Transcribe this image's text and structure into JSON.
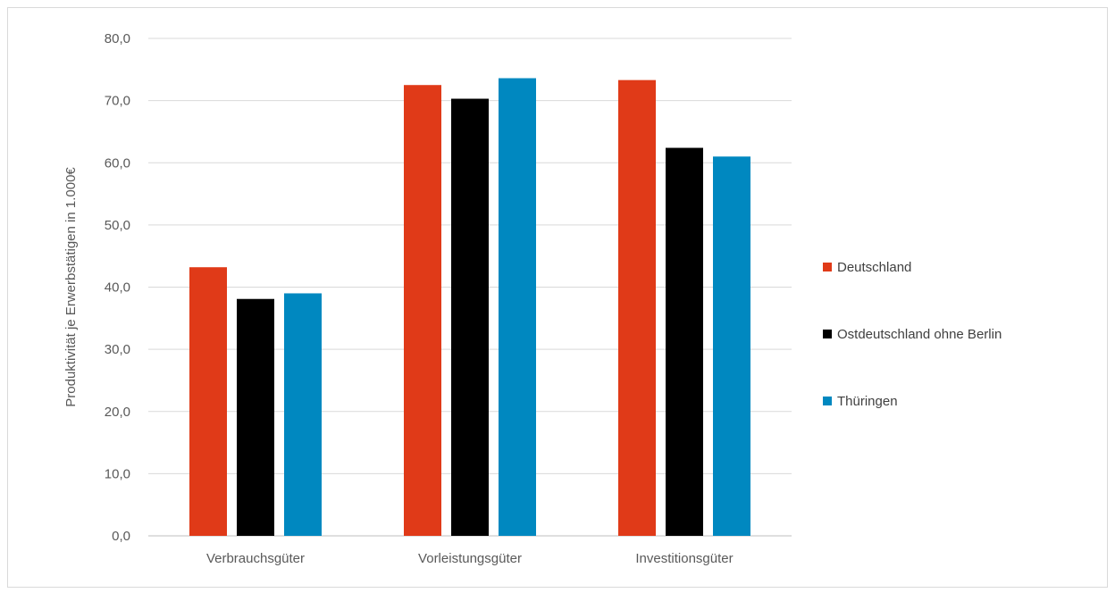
{
  "chart_data": {
    "type": "bar",
    "title": "",
    "xlabel": "",
    "ylabel": "Produktivität je Erwerbstätigen in 1.000€",
    "ylim": [
      0,
      80
    ],
    "yticks": [
      "0,0",
      "10,0",
      "20,0",
      "30,0",
      "40,0",
      "50,0",
      "60,0",
      "70,0",
      "80,0"
    ],
    "categories": [
      "Verbrauchsgüter",
      "Vorleistungsgüter",
      "Investitionsgüter"
    ],
    "series": [
      {
        "name": "Deutschland",
        "color": "#e03a18",
        "values": [
          43.2,
          72.5,
          73.3
        ]
      },
      {
        "name": "Ostdeutschland ohne Berlin",
        "color": "#000000",
        "values": [
          38.1,
          70.3,
          62.4
        ]
      },
      {
        "name": "Thüringen",
        "color": "#0088c0",
        "values": [
          39.0,
          73.6,
          61.0
        ]
      }
    ],
    "grid": true,
    "legend": "right"
  }
}
